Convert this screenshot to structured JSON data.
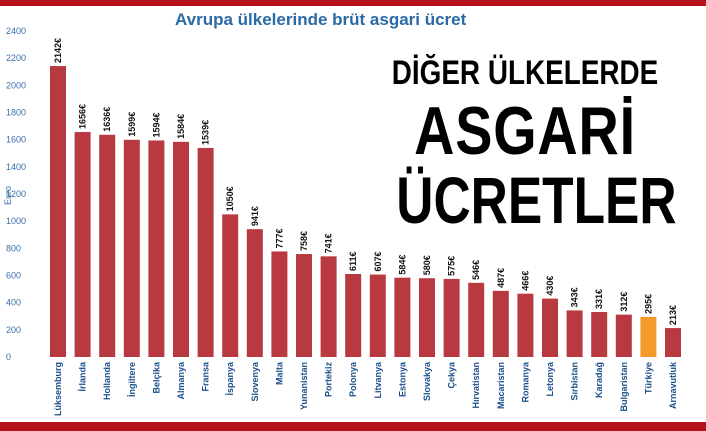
{
  "headline": {
    "line1": "DİĞER ÜLKELERDE",
    "line2": "ASGARİ",
    "line3": "ÜCRETLER"
  },
  "chart_data": {
    "type": "bar",
    "title": "Avrupa ülkelerinde brüt asgari ücret",
    "ylabel": "Euro",
    "xlabel": "",
    "ylim": [
      0,
      2400
    ],
    "yticks": [
      0,
      200,
      400,
      600,
      800,
      1000,
      1200,
      1400,
      1600,
      1800,
      2000,
      2200,
      2400
    ],
    "grid": false,
    "categories": [
      "Lüksemburg",
      "İrlanda",
      "Hollanda",
      "İngiltere",
      "Belçika",
      "Almanya",
      "Fransa",
      "İspanya",
      "Slovenya",
      "Malta",
      "Yunanistan",
      "Portekiz",
      "Polonya",
      "Litvanya",
      "Estonya",
      "Slovakya",
      "Çekya",
      "Hırvatistan",
      "Macaristan",
      "Romanya",
      "Letonya",
      "Sırbistan",
      "Karadağ",
      "Bulgaristan",
      "Türkiye",
      "Arnavutluk"
    ],
    "values": [
      2142,
      1656,
      1636,
      1599,
      1594,
      1584,
      1539,
      1050,
      941,
      777,
      758,
      741,
      611,
      607,
      584,
      580,
      575,
      546,
      487,
      466,
      430,
      343,
      331,
      312,
      295,
      213
    ],
    "value_labels": [
      "2142€",
      "1656€",
      "1636€",
      "1599€",
      "1594€",
      "1584€",
      "1539€",
      "1050€",
      "941€",
      "777€",
      "758€",
      "741€",
      "611€",
      "607€",
      "584€",
      "580€",
      "575€",
      "546€",
      "487€",
      "466€",
      "430€",
      "343€",
      "331€",
      "312€",
      "295€",
      "213€"
    ],
    "colors": {
      "default": "#b8393f",
      "highlight": "#f39a2b"
    },
    "highlight_category": "Türkiye"
  }
}
